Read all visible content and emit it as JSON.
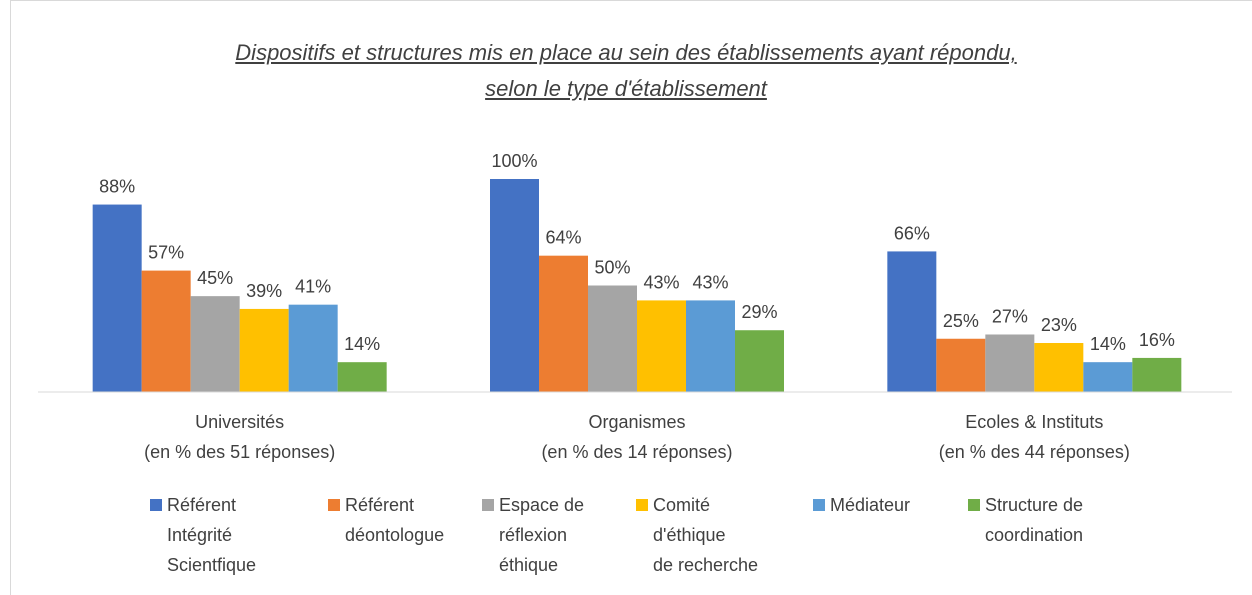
{
  "chart_data": {
    "type": "bar",
    "title": "Dispositifs et structures mis en place au sein des établissements ayant répondu,\nselon le type d'établissement",
    "categories": [
      "Universités\n(en % des 51 réponses)",
      "Organismes\n(en % des 14 réponses)",
      "Ecoles & Instituts\n(en % des 44 réponses)"
    ],
    "ylim": [
      0,
      100
    ],
    "series": [
      {
        "name": "Référent\nIntégrité\nScientfique",
        "color": "#4472c4",
        "values": [
          88,
          100,
          66
        ],
        "value_labels": [
          "88%",
          "100%",
          "66%"
        ]
      },
      {
        "name": "Référent\ndéontologue",
        "color": "#ed7d31",
        "values": [
          57,
          64,
          25
        ],
        "value_labels": [
          "57%",
          "64%",
          "25%"
        ]
      },
      {
        "name": "Espace de\nréflexion\néthique",
        "color": "#a5a5a5",
        "values": [
          45,
          50,
          27
        ],
        "value_labels": [
          "45%",
          "50%",
          "27%"
        ]
      },
      {
        "name": "Comité\nd'éthique\nde recherche",
        "color": "#ffc000",
        "values": [
          39,
          43,
          23
        ],
        "value_labels": [
          "39%",
          "43%",
          "23%"
        ]
      },
      {
        "name": "Médiateur",
        "color": "#5b9bd5",
        "values": [
          41,
          43,
          14
        ],
        "value_labels": [
          "41%",
          "43%",
          "14%"
        ]
      },
      {
        "name": "Structure de\ncoordination",
        "color": "#70ad47",
        "values": [
          14,
          29,
          16
        ],
        "value_labels": [
          "14%",
          "29%",
          "16%"
        ]
      }
    ]
  }
}
